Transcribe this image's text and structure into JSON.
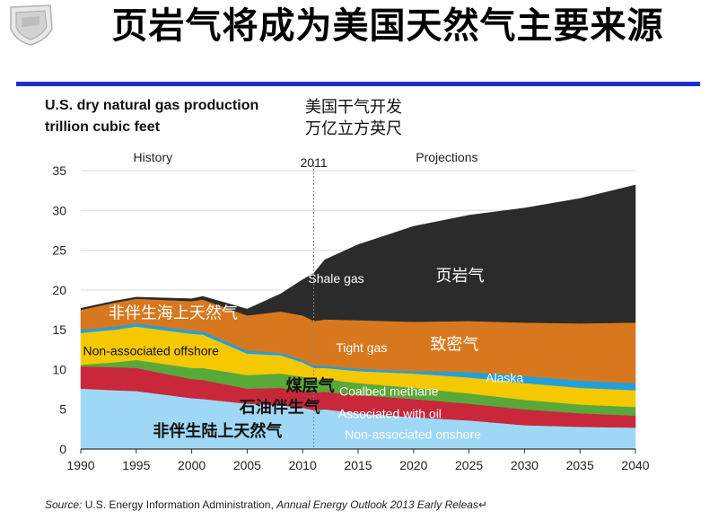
{
  "slide": {
    "title": "页岩气将成为美国天然气主要来源",
    "source_prefix": "Source:",
    "source_text": "U.S. Energy Information Administration,",
    "source_italic": "Annual Energy Outlook 2013 Early Releas",
    "source_suffix": "↵"
  },
  "chart_header": {
    "line1": "U.S. dry natural gas production",
    "line2": "trillion cubic feet",
    "cn_line1": "美国干气开发",
    "cn_line2": "万亿立方英尺"
  },
  "colors": {
    "nonassoc_onshore": "#9fd8f6",
    "associated_oil": "#c8283a",
    "coalbed": "#59a83a",
    "offshore": "#f5c800",
    "alaska": "#22a0dc",
    "tight": "#d8781e",
    "shale": "#2b2b2b",
    "title_rule": "#1f2fcf",
    "divider": "#888888"
  },
  "chart_data": {
    "type": "area",
    "stacked": true,
    "xlabel": "",
    "ylabel": "",
    "xlim": [
      1990,
      2040
    ],
    "ylim": [
      0,
      35
    ],
    "x_ticks": [
      1990,
      1995,
      2000,
      2005,
      2010,
      2015,
      2020,
      2025,
      2030,
      2035,
      2040
    ],
    "y_ticks": [
      0,
      5,
      10,
      15,
      20,
      25,
      30,
      35
    ],
    "grid": "horizontal",
    "divider_year": 2011,
    "divider_label": "2011",
    "region_labels": {
      "history": "History",
      "projections": "Projections"
    },
    "x": [
      1990,
      1993,
      1995,
      2000,
      2001,
      2005,
      2008,
      2010,
      2011,
      2012,
      2015,
      2020,
      2025,
      2030,
      2035,
      2040
    ],
    "series": [
      {
        "key": "nonassoc_onshore",
        "values": [
          7.6,
          7.4,
          7.3,
          6.4,
          6.3,
          5.7,
          5.5,
          5.2,
          4.9,
          5.0,
          4.5,
          4.0,
          3.6,
          3.0,
          2.8,
          2.7
        ]
      },
      {
        "key": "associated_oil",
        "values": [
          2.8,
          2.9,
          2.9,
          2.4,
          2.4,
          1.9,
          2.2,
          2.1,
          2.2,
          2.2,
          2.3,
          2.3,
          2.1,
          2.0,
          1.7,
          1.5
        ]
      },
      {
        "key": "coalbed",
        "values": [
          0.2,
          0.6,
          1.0,
          1.4,
          1.5,
          1.7,
          1.8,
          1.8,
          1.6,
          1.6,
          1.5,
          1.4,
          1.3,
          1.2,
          1.1,
          1.1
        ]
      },
      {
        "key": "offshore",
        "values": [
          4.0,
          4.1,
          4.2,
          4.3,
          4.2,
          2.7,
          2.3,
          1.8,
          1.5,
          1.4,
          1.5,
          1.8,
          2.0,
          2.1,
          2.1,
          2.1
        ]
      },
      {
        "key": "alaska",
        "values": [
          0.4,
          0.4,
          0.4,
          0.4,
          0.4,
          0.4,
          0.3,
          0.3,
          0.3,
          0.3,
          0.3,
          0.3,
          0.7,
          0.9,
          0.9,
          0.9
        ]
      },
      {
        "key": "tight",
        "values": [
          2.5,
          3.0,
          3.1,
          3.7,
          4.0,
          4.4,
          5.2,
          5.6,
          5.6,
          5.8,
          6.1,
          6.2,
          6.4,
          6.7,
          7.2,
          7.6
        ]
      },
      {
        "key": "shale",
        "values": [
          0.2,
          0.2,
          0.2,
          0.3,
          0.4,
          0.8,
          2.2,
          4.5,
          6.0,
          7.5,
          9.5,
          12.0,
          13.3,
          14.4,
          15.7,
          17.3
        ]
      }
    ],
    "annotations": [
      {
        "text": "Shale gas",
        "x": 2010.5,
        "y": 20.9,
        "style": "anno-en"
      },
      {
        "text": "页岩气",
        "x": 2022,
        "y": 21.1,
        "style": "anno-cn-light"
      },
      {
        "text": "Tight gas",
        "x": 2013,
        "y": 12.2,
        "style": "anno-en"
      },
      {
        "text": "致密气",
        "x": 2021.5,
        "y": 12.5,
        "style": "anno-cn-light"
      },
      {
        "text": "Alaska",
        "x": 2026.5,
        "y": 8.4,
        "style": "anno-en"
      },
      {
        "text": "非伴生海上天然气",
        "x": 1992.5,
        "y": 16.4,
        "style": "anno-cn-light"
      },
      {
        "text": "Non-associated offshore",
        "x": 1990.2,
        "y": 11.8,
        "style": "anno-en-dark"
      },
      {
        "text": "煤层气",
        "x": 2008.5,
        "y": 7.3,
        "style": "anno-cn-dark"
      },
      {
        "text": "Coalbed methane",
        "x": 2013.3,
        "y": 6.7,
        "style": "anno-en"
      },
      {
        "text": "石油伴生气",
        "x": 2004.3,
        "y": 4.6,
        "style": "anno-cn-dark"
      },
      {
        "text": "Associated with oil",
        "x": 2013.2,
        "y": 3.9,
        "style": "anno-en"
      },
      {
        "text": "非伴生陆上天然气",
        "x": 1996.5,
        "y": 1.6,
        "style": "anno-cn-dark"
      },
      {
        "text": "Non-associated onshore",
        "x": 2013.8,
        "y": 1.3,
        "style": "anno-en"
      }
    ]
  }
}
